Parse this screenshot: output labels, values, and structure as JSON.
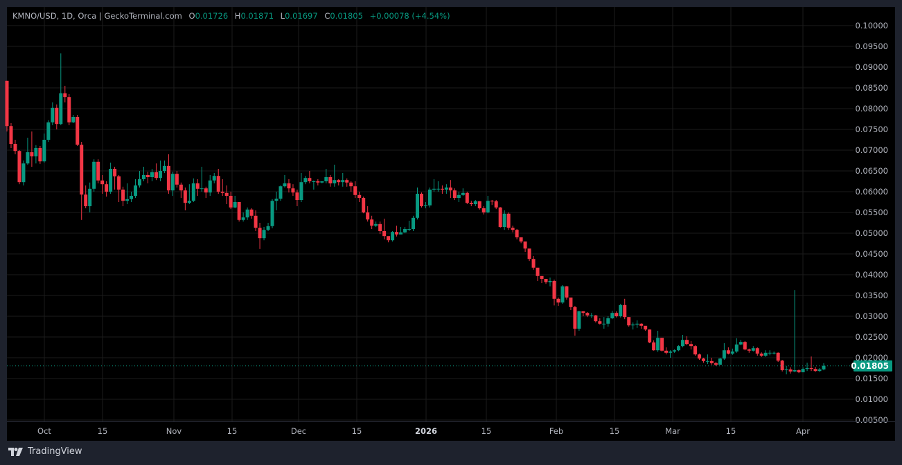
{
  "legend": {
    "symbol": "KMNO/USD, 1D, Orca | GeckoTerminal.com",
    "open_label": "O",
    "open": "0.01726",
    "high_label": "H",
    "high": "0.01871",
    "low_label": "L",
    "low": "0.01697",
    "close_label": "C",
    "close": "0.01805",
    "change": "+0.00078 (+4.54%)"
  },
  "brand": {
    "name": "TradingView",
    "icon": "tradingview-logo-icon"
  },
  "colors": {
    "up": "#089981",
    "down": "#f23645",
    "background": "#000000",
    "frame": "#1e222d",
    "grid": "#1c1c1c",
    "axis_text": "#b2b5be"
  },
  "chart_data": {
    "type": "candlestick",
    "title": "KMNO/USD, 1D, Orca | GeckoTerminal.com",
    "ylim": [
      0.005,
      0.1
    ],
    "grid": true,
    "y_ticks": [
      "0.10000",
      "0.09500",
      "0.09000",
      "0.08500",
      "0.08000",
      "0.07500",
      "0.07000",
      "0.06500",
      "0.06000",
      "0.05500",
      "0.05000",
      "0.04500",
      "0.04000",
      "0.03500",
      "0.03000",
      "0.02500",
      "0.02000",
      "0.01500",
      "0.01000",
      "0.00500"
    ],
    "x_ticks": [
      "Oct",
      "15",
      "Nov",
      "15",
      "Dec",
      "15",
      "2026",
      "15",
      "Feb",
      "15",
      "Mar",
      "15",
      "Apr"
    ],
    "last_price": "0.01805",
    "first_open": 0.0867,
    "close": [
      0.0758,
      0.0715,
      0.0698,
      0.0623,
      0.0668,
      0.0695,
      0.0685,
      0.0705,
      0.0673,
      0.0725,
      0.0767,
      0.0802,
      0.0763,
      0.0837,
      0.0828,
      0.0767,
      0.078,
      0.0713,
      0.0593,
      0.0565,
      0.0607,
      0.0672,
      0.0627,
      0.0618,
      0.06,
      0.0655,
      0.0637,
      0.0605,
      0.0578,
      0.0582,
      0.059,
      0.0615,
      0.063,
      0.064,
      0.0635,
      0.0647,
      0.0633,
      0.065,
      0.0662,
      0.0603,
      0.0643,
      0.0617,
      0.0603,
      0.0573,
      0.0578,
      0.062,
      0.0607,
      0.0608,
      0.0598,
      0.0627,
      0.0638,
      0.06,
      0.0597,
      0.059,
      0.0562,
      0.0575,
      0.0532,
      0.0538,
      0.0557,
      0.0542,
      0.0513,
      0.0488,
      0.0508,
      0.0517,
      0.0578,
      0.0583,
      0.0613,
      0.062,
      0.0608,
      0.0598,
      0.058,
      0.0623,
      0.0633,
      0.0625,
      0.0625,
      0.0622,
      0.0625,
      0.0635,
      0.062,
      0.0628,
      0.0623,
      0.0628,
      0.0622,
      0.0613,
      0.0592,
      0.0585,
      0.055,
      0.0533,
      0.0518,
      0.0522,
      0.0505,
      0.0493,
      0.0483,
      0.0503,
      0.0497,
      0.0502,
      0.051,
      0.051,
      0.0537,
      0.0595,
      0.0565,
      0.0567,
      0.0605,
      0.0607,
      0.0607,
      0.0605,
      0.061,
      0.0603,
      0.0585,
      0.0592,
      0.0597,
      0.0573,
      0.057,
      0.0577,
      0.056,
      0.055,
      0.0578,
      0.0577,
      0.0562,
      0.0515,
      0.0547,
      0.0513,
      0.0508,
      0.049,
      0.048,
      0.0463,
      0.0438,
      0.0417,
      0.0397,
      0.039,
      0.0382,
      0.0385,
      0.0342,
      0.0333,
      0.0372,
      0.0345,
      0.0322,
      0.027,
      0.0312,
      0.0308,
      0.0302,
      0.0302,
      0.0288,
      0.0282,
      0.0282,
      0.0295,
      0.0308,
      0.03,
      0.0327,
      0.0298,
      0.0278,
      0.028,
      0.0282,
      0.0277,
      0.0268,
      0.0237,
      0.0218,
      0.0248,
      0.0217,
      0.0212,
      0.0215,
      0.0218,
      0.0228,
      0.0243,
      0.0233,
      0.0228,
      0.0208,
      0.0198,
      0.0192,
      0.0192,
      0.0187,
      0.0183,
      0.0198,
      0.0218,
      0.021,
      0.0215,
      0.0232,
      0.0238,
      0.022,
      0.0217,
      0.0223,
      0.021,
      0.0205,
      0.0212,
      0.0212,
      0.0212,
      0.0193,
      0.017,
      0.0172,
      0.0167,
      0.017,
      0.0165,
      0.0173,
      0.0175,
      0.0173,
      0.0168,
      0.0172,
      0.01805
    ],
    "high": [
      0.0867,
      0.0765,
      0.0725,
      0.07,
      0.0675,
      0.073,
      0.0745,
      0.0712,
      0.071,
      0.074,
      0.0772,
      0.0815,
      0.081,
      0.0933,
      0.0855,
      0.0835,
      0.0785,
      0.0785,
      0.072,
      0.0615,
      0.0622,
      0.0678,
      0.0678,
      0.064,
      0.0625,
      0.067,
      0.066,
      0.064,
      0.0612,
      0.062,
      0.06,
      0.063,
      0.065,
      0.066,
      0.0648,
      0.0655,
      0.0668,
      0.0675,
      0.0675,
      0.069,
      0.0648,
      0.065,
      0.0622,
      0.061,
      0.0618,
      0.0632,
      0.063,
      0.066,
      0.0612,
      0.064,
      0.0645,
      0.0655,
      0.063,
      0.0615,
      0.06,
      0.059,
      0.0575,
      0.055,
      0.0562,
      0.056,
      0.0555,
      0.0525,
      0.0515,
      0.0525,
      0.0582,
      0.06,
      0.0615,
      0.064,
      0.063,
      0.0618,
      0.0605,
      0.0645,
      0.0638,
      0.065,
      0.0627,
      0.063,
      0.0625,
      0.0655,
      0.064,
      0.0665,
      0.063,
      0.0645,
      0.0632,
      0.0625,
      0.0625,
      0.06,
      0.0588,
      0.0565,
      0.0542,
      0.0528,
      0.0528,
      0.0535,
      0.049,
      0.0505,
      0.0518,
      0.0515,
      0.0515,
      0.053,
      0.0542,
      0.061,
      0.0598,
      0.0575,
      0.061,
      0.063,
      0.0625,
      0.0615,
      0.0618,
      0.0628,
      0.0608,
      0.06,
      0.0608,
      0.06,
      0.0578,
      0.058,
      0.0577,
      0.0565,
      0.059,
      0.058,
      0.058,
      0.0563,
      0.0555,
      0.055,
      0.0518,
      0.051,
      0.049,
      0.047,
      0.046,
      0.0445,
      0.04,
      0.0393,
      0.039,
      0.0393,
      0.0388,
      0.0345,
      0.0375,
      0.0373,
      0.034,
      0.0325,
      0.0313,
      0.0312,
      0.031,
      0.0308,
      0.0303,
      0.0295,
      0.0298,
      0.03,
      0.0313,
      0.0312,
      0.033,
      0.0342,
      0.0298,
      0.0285,
      0.029,
      0.0283,
      0.0275,
      0.0268,
      0.0242,
      0.0265,
      0.0248,
      0.0225,
      0.0218,
      0.022,
      0.023,
      0.0255,
      0.0252,
      0.024,
      0.023,
      0.021,
      0.02,
      0.0208,
      0.02,
      0.019,
      0.02,
      0.0235,
      0.0225,
      0.0222,
      0.0247,
      0.0243,
      0.024,
      0.0222,
      0.0228,
      0.0225,
      0.0213,
      0.0218,
      0.0218,
      0.0215,
      0.0213,
      0.0195,
      0.018,
      0.0177,
      0.0363,
      0.0172,
      0.0177,
      0.0188,
      0.0203,
      0.0178,
      0.0175,
      0.01871
    ],
    "low": [
      0.0745,
      0.0705,
      0.069,
      0.0618,
      0.0615,
      0.0665,
      0.066,
      0.0668,
      0.0667,
      0.067,
      0.072,
      0.076,
      0.075,
      0.076,
      0.0815,
      0.076,
      0.0765,
      0.071,
      0.0532,
      0.056,
      0.055,
      0.06,
      0.062,
      0.0595,
      0.0588,
      0.0595,
      0.0605,
      0.0575,
      0.0565,
      0.057,
      0.0575,
      0.0585,
      0.061,
      0.0625,
      0.062,
      0.0625,
      0.0628,
      0.0625,
      0.0645,
      0.0595,
      0.059,
      0.061,
      0.0585,
      0.0555,
      0.057,
      0.0575,
      0.059,
      0.06,
      0.0585,
      0.059,
      0.062,
      0.0595,
      0.059,
      0.057,
      0.0558,
      0.056,
      0.0528,
      0.0528,
      0.0532,
      0.0535,
      0.0505,
      0.0462,
      0.0483,
      0.0505,
      0.0512,
      0.0555,
      0.0578,
      0.061,
      0.0598,
      0.059,
      0.0565,
      0.0575,
      0.0618,
      0.062,
      0.0605,
      0.0615,
      0.062,
      0.062,
      0.0612,
      0.0612,
      0.0615,
      0.0612,
      0.0612,
      0.06,
      0.0585,
      0.0575,
      0.0548,
      0.0528,
      0.051,
      0.0515,
      0.0498,
      0.0485,
      0.0478,
      0.048,
      0.0492,
      0.0498,
      0.05,
      0.0505,
      0.0505,
      0.0533,
      0.0562,
      0.056,
      0.0562,
      0.06,
      0.06,
      0.0595,
      0.0595,
      0.0585,
      0.058,
      0.0575,
      0.059,
      0.057,
      0.0565,
      0.0565,
      0.0557,
      0.0545,
      0.0548,
      0.0568,
      0.0558,
      0.0513,
      0.0508,
      0.0508,
      0.0502,
      0.0485,
      0.0476,
      0.0455,
      0.0433,
      0.0412,
      0.0385,
      0.038,
      0.0378,
      0.0372,
      0.0326,
      0.0325,
      0.033,
      0.034,
      0.0315,
      0.0253,
      0.0265,
      0.03,
      0.0298,
      0.0296,
      0.0285,
      0.028,
      0.027,
      0.0275,
      0.0293,
      0.0297,
      0.0297,
      0.0293,
      0.0275,
      0.0268,
      0.0272,
      0.027,
      0.0265,
      0.0235,
      0.0217,
      0.0214,
      0.0215,
      0.0208,
      0.02,
      0.0212,
      0.0216,
      0.0225,
      0.023,
      0.022,
      0.0205,
      0.0195,
      0.0188,
      0.0185,
      0.0183,
      0.018,
      0.0183,
      0.0195,
      0.0208,
      0.0207,
      0.0212,
      0.023,
      0.0218,
      0.0212,
      0.0215,
      0.0205,
      0.0202,
      0.0202,
      0.0206,
      0.0208,
      0.019,
      0.0167,
      0.016,
      0.0162,
      0.0165,
      0.0163,
      0.0165,
      0.0168,
      0.0168,
      0.0166,
      0.0166,
      0.01697
    ]
  }
}
